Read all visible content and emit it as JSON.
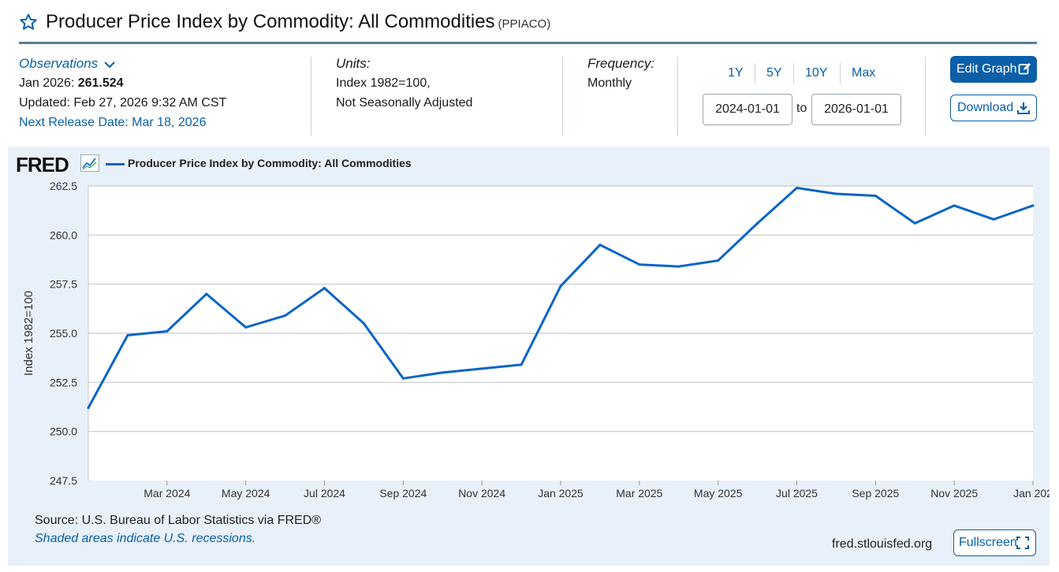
{
  "header": {
    "title": "Producer Price Index by Commodity: All Commodities",
    "code": "(PPIACO)"
  },
  "observations": {
    "label": "Observations",
    "latest_label": "Jan 2026:",
    "latest_value": "261.524",
    "updated": "Updated: Feb 27, 2026 9:32 AM CST",
    "next_release": "Next Release Date: Mar 18, 2026"
  },
  "units": {
    "label": "Units:",
    "line1": "Index 1982=100,",
    "line2": "Not Seasonally Adjusted"
  },
  "frequency": {
    "label": "Frequency:",
    "value": "Monthly"
  },
  "range": {
    "buttons": [
      "1Y",
      "5Y",
      "10Y",
      "Max"
    ],
    "start": "2024-01-01",
    "to": "to",
    "end": "2026-01-01"
  },
  "actions": {
    "edit_graph": "Edit Graph",
    "download": "Download",
    "fullscreen": "Fullscreen"
  },
  "chart_panel": {
    "logo": "FRED",
    "source": "Source: U.S. Bureau of Labor Statistics via FRED®",
    "recessions": "Shaded areas indicate U.S. recessions.",
    "url": "fred.stlouisfed.org"
  },
  "colors": {
    "accent": "#0a5fa8",
    "series": "#0a64c8",
    "panel_bg": "#e8f0f9"
  },
  "chart_data": {
    "type": "line",
    "ylabel": "Index 1982=100",
    "ylim": [
      247.5,
      262.5
    ],
    "yticks": [
      "247.5",
      "250.0",
      "252.5",
      "255.0",
      "257.5",
      "260.0",
      "262.5"
    ],
    "xtick_labels": [
      "Mar 2024",
      "May 2024",
      "Jul 2024",
      "Sep 2024",
      "Nov 2024",
      "Jan 2025",
      "Mar 2025",
      "May 2025",
      "Jul 2025",
      "Sep 2025",
      "Nov 2025",
      "Jan 202"
    ],
    "grid": true,
    "series": [
      {
        "name": "Producer Price Index by Commodity: All Commodities",
        "x": [
          "2024-01",
          "2024-02",
          "2024-03",
          "2024-04",
          "2024-05",
          "2024-06",
          "2024-07",
          "2024-08",
          "2024-09",
          "2024-10",
          "2024-11",
          "2024-12",
          "2025-01",
          "2025-02",
          "2025-03",
          "2025-04",
          "2025-05",
          "2025-06",
          "2025-07",
          "2025-08",
          "2025-09",
          "2025-10",
          "2025-11",
          "2025-12",
          "2026-01"
        ],
        "values": [
          251.2,
          254.9,
          255.1,
          257.0,
          255.3,
          255.9,
          257.3,
          255.5,
          252.7,
          253.0,
          253.2,
          253.4,
          257.4,
          259.5,
          258.5,
          258.4,
          258.7,
          260.6,
          262.4,
          262.1,
          262.0,
          260.6,
          261.5,
          260.8,
          261.5
        ]
      }
    ]
  }
}
